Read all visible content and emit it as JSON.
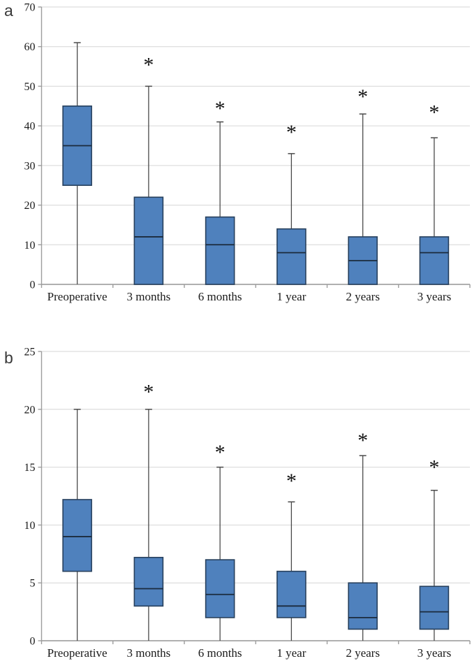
{
  "figure": {
    "panel_a_label": "a",
    "panel_b_label": "b",
    "significance_marker": "*"
  },
  "colors": {
    "box_fill": "#4f81bd",
    "box_border": "#27405d",
    "median_line": "#1b2b3d",
    "whisker": "#4a4a4a",
    "gridline": "#d6d6d6",
    "baseline": "#b0b0b0",
    "axis": "#9d9d9d",
    "tick_text": "#1a1a1a",
    "panel_letter": "#3a3a3a",
    "asterisk": "#111111"
  },
  "chart_data": [
    {
      "type": "box",
      "panel": "a",
      "title": "",
      "xlabel": "",
      "ylabel": "",
      "ylim": [
        0,
        70
      ],
      "yticks": [
        0,
        10,
        20,
        30,
        40,
        50,
        60,
        70
      ],
      "grid": true,
      "categories": [
        "Preoperative",
        "3 months",
        "6 months",
        "1 year",
        "2 years",
        "3 years"
      ],
      "boxes": [
        {
          "category": "Preoperative",
          "whisker_low": 0,
          "q1": 25,
          "median": 35,
          "q3": 45,
          "whisker_high": 61,
          "significant": false,
          "asterisk_y": null
        },
        {
          "category": "3 months",
          "whisker_low": 0,
          "q1": 0,
          "median": 12,
          "q3": 22,
          "whisker_high": 50,
          "significant": true,
          "asterisk_y": 56
        },
        {
          "category": "6 months",
          "whisker_low": 0,
          "q1": 0,
          "median": 10,
          "q3": 17,
          "whisker_high": 41,
          "significant": true,
          "asterisk_y": 45
        },
        {
          "category": "1 year",
          "whisker_low": 0,
          "q1": 0,
          "median": 8,
          "q3": 14,
          "whisker_high": 33,
          "significant": true,
          "asterisk_y": 39
        },
        {
          "category": "2 years",
          "whisker_low": 0,
          "q1": 0,
          "median": 6,
          "q3": 12,
          "whisker_high": 43,
          "significant": true,
          "asterisk_y": 48
        },
        {
          "category": "3 years",
          "whisker_low": 0,
          "q1": 0,
          "median": 8,
          "q3": 12,
          "whisker_high": 37,
          "significant": true,
          "asterisk_y": 44
        }
      ]
    },
    {
      "type": "box",
      "panel": "b",
      "title": "",
      "xlabel": "",
      "ylabel": "",
      "ylim": [
        0,
        25
      ],
      "yticks": [
        0,
        5,
        10,
        15,
        20,
        25
      ],
      "grid": true,
      "categories": [
        "Preoperative",
        "3 months",
        "6 months",
        "1 year",
        "2 years",
        "3 years"
      ],
      "boxes": [
        {
          "category": "Preoperative",
          "whisker_low": 0,
          "q1": 6,
          "median": 9,
          "q3": 12.2,
          "whisker_high": 20,
          "significant": false,
          "asterisk_y": null
        },
        {
          "category": "3 months",
          "whisker_low": 0,
          "q1": 3,
          "median": 4.5,
          "q3": 7.2,
          "whisker_high": 20,
          "significant": true,
          "asterisk_y": 21.7
        },
        {
          "category": "6 months",
          "whisker_low": 0,
          "q1": 2,
          "median": 4,
          "q3": 7,
          "whisker_high": 15,
          "significant": true,
          "asterisk_y": 16.5
        },
        {
          "category": "1 year",
          "whisker_low": 0,
          "q1": 2,
          "median": 3,
          "q3": 6,
          "whisker_high": 12,
          "significant": true,
          "asterisk_y": 14
        },
        {
          "category": "2 years",
          "whisker_low": 0,
          "q1": 1,
          "median": 2,
          "q3": 5,
          "whisker_high": 16,
          "significant": true,
          "asterisk_y": 17.5
        },
        {
          "category": "3 years",
          "whisker_low": 0,
          "q1": 1,
          "median": 2.5,
          "q3": 4.7,
          "whisker_high": 13,
          "significant": true,
          "asterisk_y": 15.2
        }
      ]
    }
  ]
}
